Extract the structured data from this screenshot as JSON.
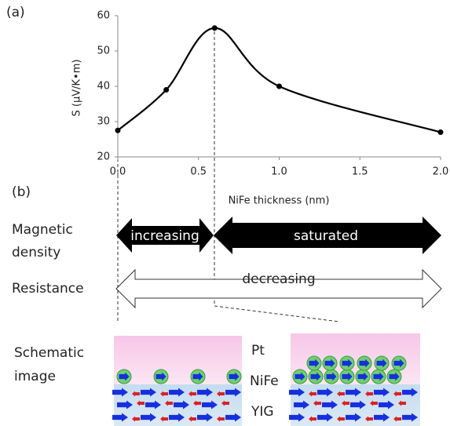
{
  "panel_a_label": "(a)",
  "chart_data": {
    "type": "line",
    "xlabel": "NiFe thickness (nm)",
    "ylabel": "S (μV/K•m)",
    "x": [
      0,
      0.3,
      0.6,
      1.0,
      2.0
    ],
    "series": [
      {
        "color": "#000000",
        "values": [
          27.5,
          39,
          56.5,
          40,
          27
        ]
      }
    ],
    "xlim": [
      0,
      2
    ],
    "ylim": [
      20,
      60
    ],
    "xticks": [
      {
        "value": 0,
        "label": "0.0"
      },
      0.5,
      {
        "value": 1,
        "label": "1.0"
      },
      1.5,
      {
        "value": 2,
        "label": "2.0"
      }
    ],
    "yticks": [
      20,
      30,
      40,
      50,
      60
    ],
    "grid": false
  },
  "panel_b": {
    "label": "(b)",
    "magnetic_density": {
      "label": [
        "Magnetic",
        "density"
      ],
      "increasing": "increasing",
      "saturated": "saturated"
    },
    "resistance": {
      "label": "Resistance",
      "decreasing": "decreasing"
    },
    "schematic": {
      "label": [
        "Schematic",
        "image"
      ],
      "layers": [
        "Pt",
        "NiFe",
        "YIG"
      ]
    }
  }
}
